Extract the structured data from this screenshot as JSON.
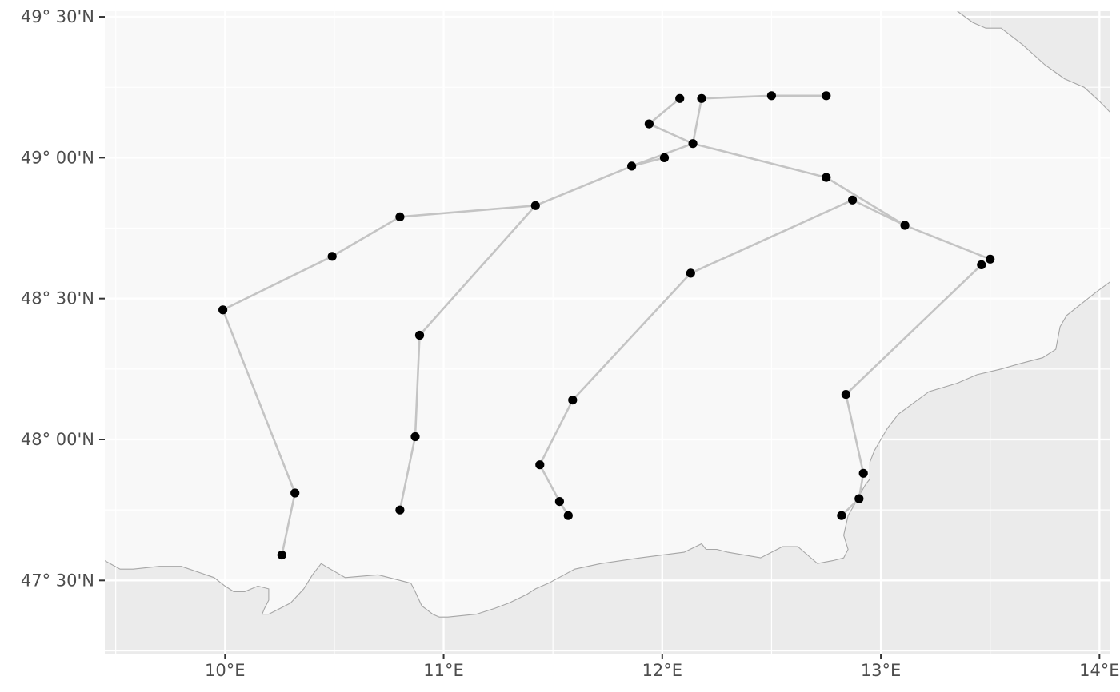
{
  "map": {
    "colors": {
      "panel": "#ebebeb",
      "land": "#f8f8f8",
      "border": "#a6a6a6",
      "grid": "#ffffff",
      "route": "#c4c4c4",
      "station": "#000000",
      "tick": "#333333",
      "label": "#4d4d4d"
    },
    "extent": {
      "lon": [
        9.45,
        14.05
      ],
      "lat": [
        47.24,
        49.52
      ]
    },
    "lon_ticks": [
      {
        "value": 10,
        "label": "10°E"
      },
      {
        "value": 11,
        "label": "11°E"
      },
      {
        "value": 12,
        "label": "12°E"
      },
      {
        "value": 13,
        "label": "13°E"
      },
      {
        "value": 14,
        "label": "14°E"
      }
    ],
    "lat_ticks": [
      {
        "value": 47.5,
        "label": "47° 30'N"
      },
      {
        "value": 48.0,
        "label": "48° 00'N"
      },
      {
        "value": 48.5,
        "label": "48° 30'N"
      },
      {
        "value": 49.0,
        "label": "49° 00'N"
      },
      {
        "value": 49.5,
        "label": "49° 30'N"
      }
    ],
    "border": [
      [
        13.35,
        49.52
      ],
      [
        13.42,
        49.48
      ],
      [
        13.48,
        49.46
      ],
      [
        13.55,
        49.46
      ],
      [
        13.65,
        49.4
      ],
      [
        13.75,
        49.33
      ],
      [
        13.84,
        49.28
      ],
      [
        13.93,
        49.25
      ],
      [
        14.0,
        49.2
      ],
      [
        14.05,
        49.16
      ],
      [
        14.15,
        49.1
      ],
      [
        14.23,
        49.06
      ],
      [
        14.28,
        49.04
      ],
      [
        14.33,
        49.02
      ],
      [
        14.45,
        49.05
      ],
      [
        14.58,
        49.02
      ],
      [
        14.7,
        48.97
      ],
      [
        14.8,
        48.92
      ],
      [
        14.82,
        48.84
      ],
      [
        14.8,
        48.8
      ],
      [
        14.78,
        48.74
      ],
      [
        14.73,
        48.7
      ],
      [
        14.68,
        48.68
      ],
      [
        14.6,
        48.66
      ],
      [
        14.5,
        48.64
      ],
      [
        14.37,
        48.62
      ],
      [
        14.25,
        48.6
      ],
      [
        14.12,
        48.58
      ],
      [
        14.05,
        48.56
      ],
      [
        13.98,
        48.52
      ],
      [
        13.85,
        48.44
      ],
      [
        13.82,
        48.4
      ],
      [
        13.8,
        48.32
      ],
      [
        13.74,
        48.29
      ],
      [
        13.64,
        48.27
      ],
      [
        13.55,
        48.25
      ],
      [
        13.44,
        48.23
      ],
      [
        13.35,
        48.2
      ],
      [
        13.22,
        48.17
      ],
      [
        13.08,
        48.09
      ],
      [
        13.03,
        48.04
      ],
      [
        13.0,
        48.0
      ],
      [
        12.97,
        47.96
      ],
      [
        12.95,
        47.92
      ],
      [
        12.95,
        47.86
      ],
      [
        12.93,
        47.84
      ],
      [
        12.9,
        47.8
      ],
      [
        12.88,
        47.77
      ],
      [
        12.85,
        47.73
      ],
      [
        12.83,
        47.66
      ],
      [
        12.85,
        47.61
      ],
      [
        12.83,
        47.58
      ],
      [
        12.78,
        47.57
      ],
      [
        12.71,
        47.56
      ],
      [
        12.62,
        47.62
      ],
      [
        12.55,
        47.62
      ],
      [
        12.5,
        47.6
      ],
      [
        12.45,
        47.58
      ],
      [
        12.3,
        47.6
      ],
      [
        12.25,
        47.61
      ],
      [
        12.2,
        47.61
      ],
      [
        12.18,
        47.63
      ],
      [
        12.1,
        47.6
      ],
      [
        11.9,
        47.58
      ],
      [
        11.72,
        47.56
      ],
      [
        11.6,
        47.54
      ],
      [
        11.48,
        47.49
      ],
      [
        11.42,
        47.47
      ],
      [
        11.38,
        47.45
      ],
      [
        11.3,
        47.42
      ],
      [
        11.23,
        47.4
      ],
      [
        11.15,
        47.38
      ],
      [
        11.02,
        47.37
      ],
      [
        10.98,
        47.37
      ],
      [
        10.95,
        47.38
      ],
      [
        10.9,
        47.41
      ],
      [
        10.87,
        47.46
      ],
      [
        10.85,
        47.49
      ],
      [
        10.8,
        47.5
      ],
      [
        10.7,
        47.52
      ],
      [
        10.55,
        47.51
      ],
      [
        10.46,
        47.55
      ],
      [
        10.44,
        47.56
      ],
      [
        10.4,
        47.52
      ],
      [
        10.36,
        47.47
      ],
      [
        10.3,
        47.42
      ],
      [
        10.25,
        47.4
      ],
      [
        10.2,
        47.38
      ],
      [
        10.17,
        47.38
      ],
      [
        10.18,
        47.4
      ],
      [
        10.2,
        47.43
      ],
      [
        10.2,
        47.47
      ],
      [
        10.15,
        47.48
      ],
      [
        10.09,
        47.46
      ],
      [
        10.04,
        47.46
      ],
      [
        10.0,
        47.48
      ],
      [
        9.95,
        47.51
      ],
      [
        9.8,
        47.55
      ],
      [
        9.7,
        47.55
      ],
      [
        9.58,
        47.54
      ],
      [
        9.52,
        47.54
      ],
      [
        9.45,
        47.57
      ]
    ],
    "routes": [
      {
        "points": [
          [
            12.75,
            49.22
          ],
          [
            12.5,
            49.22
          ],
          [
            12.18,
            49.21
          ],
          [
            12.14,
            49.05
          ],
          [
            11.86,
            48.97
          ],
          [
            11.42,
            48.83
          ],
          [
            10.8,
            48.79
          ],
          [
            10.49,
            48.65
          ],
          [
            9.99,
            48.46
          ],
          [
            10.32,
            47.81
          ],
          [
            10.26,
            47.59
          ]
        ]
      },
      {
        "points": [
          [
            12.08,
            49.21
          ],
          [
            11.94,
            49.12
          ],
          [
            12.14,
            49.05
          ]
        ]
      },
      {
        "points": [
          [
            12.01,
            49.0
          ],
          [
            11.86,
            48.97
          ]
        ]
      },
      {
        "points": [
          [
            11.42,
            48.83
          ],
          [
            10.89,
            48.37
          ],
          [
            10.87,
            48.01
          ],
          [
            10.8,
            47.75
          ]
        ]
      },
      {
        "points": [
          [
            12.14,
            49.05
          ],
          [
            12.75,
            48.93
          ],
          [
            13.11,
            48.76
          ],
          [
            13.5,
            48.64
          ]
        ]
      },
      {
        "points": [
          [
            12.87,
            48.85
          ],
          [
            13.11,
            48.76
          ]
        ]
      },
      {
        "points": [
          [
            12.87,
            48.85
          ],
          [
            12.13,
            48.59
          ],
          [
            11.59,
            48.14
          ],
          [
            11.44,
            47.91
          ],
          [
            11.53,
            47.78
          ],
          [
            11.57,
            47.73
          ]
        ]
      },
      {
        "points": [
          [
            13.46,
            48.62
          ],
          [
            12.84,
            48.16
          ],
          [
            12.92,
            47.88
          ],
          [
            12.9,
            47.79
          ],
          [
            12.82,
            47.73
          ]
        ]
      }
    ],
    "stations": [
      [
        12.08,
        49.21
      ],
      [
        12.18,
        49.21
      ],
      [
        12.5,
        49.22
      ],
      [
        12.75,
        49.22
      ],
      [
        11.94,
        49.12
      ],
      [
        12.14,
        49.05
      ],
      [
        12.01,
        49.0
      ],
      [
        11.86,
        48.97
      ],
      [
        12.75,
        48.93
      ],
      [
        12.87,
        48.85
      ],
      [
        11.42,
        48.83
      ],
      [
        10.8,
        48.79
      ],
      [
        13.11,
        48.76
      ],
      [
        10.49,
        48.65
      ],
      [
        13.5,
        48.64
      ],
      [
        13.46,
        48.62
      ],
      [
        12.13,
        48.59
      ],
      [
        9.99,
        48.46
      ],
      [
        10.89,
        48.37
      ],
      [
        11.59,
        48.14
      ],
      [
        12.84,
        48.16
      ],
      [
        10.87,
        48.01
      ],
      [
        11.44,
        47.91
      ],
      [
        12.92,
        47.88
      ],
      [
        10.32,
        47.81
      ],
      [
        11.53,
        47.78
      ],
      [
        12.9,
        47.79
      ],
      [
        10.8,
        47.75
      ],
      [
        11.57,
        47.73
      ],
      [
        12.82,
        47.73
      ],
      [
        10.26,
        47.59
      ]
    ]
  }
}
